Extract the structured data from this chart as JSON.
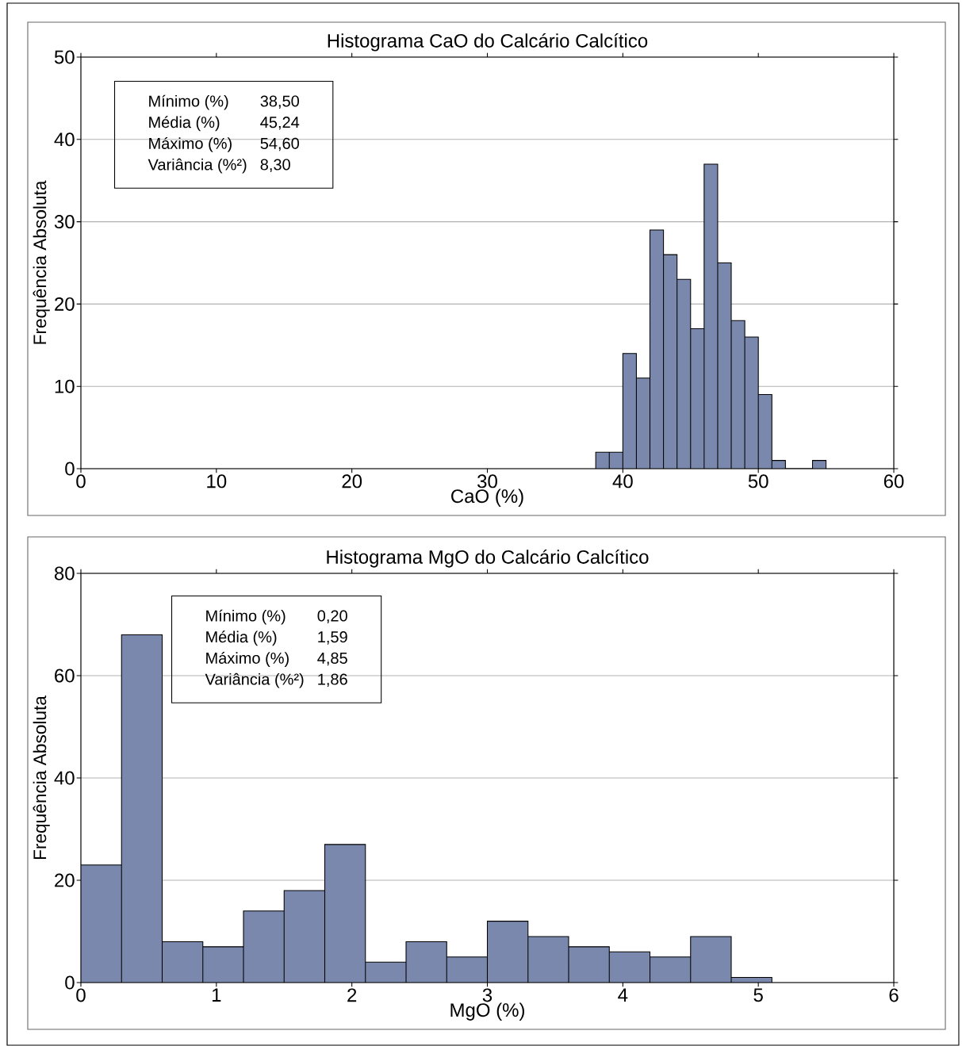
{
  "chart_data": [
    {
      "type": "histogram",
      "title": "Histograma CaO do Calcário Calcítico",
      "xlabel": "CaO (%)",
      "ylabel": "Frequência Absoluta",
      "bins": [
        38,
        39,
        40,
        41,
        42,
        43,
        44,
        45,
        46,
        47,
        48,
        49,
        50,
        51,
        52,
        53,
        54,
        55
      ],
      "values": [
        2,
        2,
        14,
        11,
        29,
        26,
        23,
        17,
        37,
        25,
        18,
        16,
        9,
        1,
        0,
        0,
        1
      ],
      "color": "#7a88ad",
      "xlim": [
        0,
        60
      ],
      "ylim": [
        0,
        50
      ],
      "xticks": [
        0,
        10,
        20,
        30,
        40,
        50,
        60
      ],
      "yticks": [
        0,
        10,
        20,
        30,
        40,
        50
      ],
      "grid": "y",
      "annotations": [
        "Mínimo (%)",
        "38,50",
        "Média (%)",
        "45,24",
        "Máximo (%)",
        "54,60",
        "Variância (%²)",
        "8,30"
      ]
    },
    {
      "type": "histogram",
      "title": "Histograma MgO do Calcário Calcítico",
      "xlabel": "MgO (%)",
      "ylabel": "Frequência Absoluta",
      "bins": [
        0,
        0.3,
        0.6,
        0.9,
        1.2,
        1.5,
        1.8,
        2.1,
        2.4,
        2.7,
        3.0,
        3.3,
        3.6,
        3.9,
        4.2,
        4.5,
        4.8,
        5.1
      ],
      "values": [
        23,
        68,
        8,
        7,
        14,
        18,
        27,
        4,
        8,
        5,
        12,
        9,
        7,
        6,
        5,
        9,
        1
      ],
      "color": "#7a88ad",
      "xlim": [
        0,
        6
      ],
      "ylim": [
        0,
        80
      ],
      "xticks": [
        0,
        1,
        2,
        3,
        4,
        5,
        6
      ],
      "yticks": [
        0,
        20,
        40,
        60,
        80
      ],
      "grid": "y",
      "annotations": [
        "Mínimo (%)",
        "0,20",
        "Média (%)",
        "1,59",
        "Máximo (%)",
        "4,85",
        "Variância (%²)",
        "1,86"
      ]
    }
  ]
}
